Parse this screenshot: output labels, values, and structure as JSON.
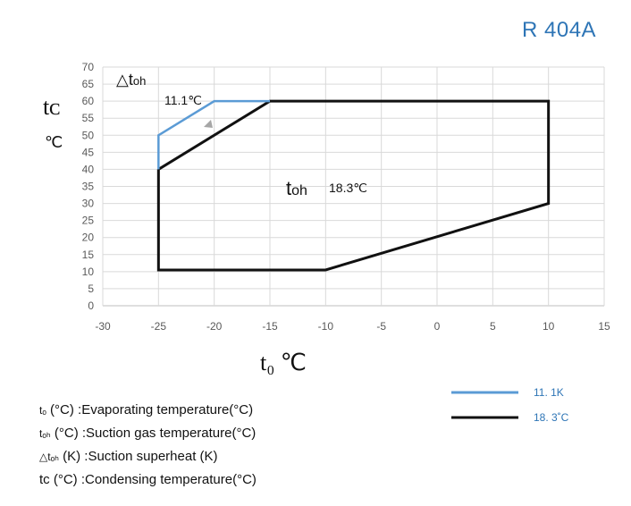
{
  "refrigerant": "R 404A",
  "chart_data": {
    "type": "line",
    "x_axis_label": "t₀ ℃",
    "y_axis_label_top": "tᴄ",
    "y_axis_label_unit": "℃",
    "xlim": [
      -30,
      15
    ],
    "ylim": [
      0,
      70
    ],
    "x_ticks": [
      -30,
      -25,
      -20,
      -15,
      -10,
      -5,
      0,
      5,
      10,
      15
    ],
    "y_ticks": [
      0,
      5,
      10,
      15,
      20,
      25,
      30,
      35,
      40,
      45,
      50,
      55,
      60,
      65,
      70
    ],
    "grid": true,
    "series": [
      {
        "name": "11. 1K",
        "color": "#5b9bd5",
        "points": [
          [
            -25,
            40
          ],
          [
            -25,
            50
          ],
          [
            -20,
            60
          ],
          [
            -15,
            60
          ]
        ]
      },
      {
        "name": "18. 3˚C",
        "color": "#111111",
        "points": [
          [
            -25,
            40
          ],
          [
            -15,
            60
          ],
          [
            10,
            60
          ],
          [
            10,
            30
          ],
          [
            -10,
            10.5
          ],
          [
            -25,
            10.5
          ],
          [
            -25,
            40
          ]
        ]
      }
    ],
    "annotations": {
      "delta_label": "△t",
      "delta_sub": "oh",
      "delta_value": "11.1℃",
      "toh_label": "t",
      "toh_sub": "oh",
      "toh_value": "18.3℃"
    }
  },
  "notes": [
    {
      "sym": "tₒ",
      "text": " (°C) :Evaporating temperature(°C)"
    },
    {
      "sym": "tₒₕ",
      "text": " (°C) :Suction gas temperature(°C)"
    },
    {
      "sym": "△tₒₕ",
      "text": " (K) :Suction superheat (K)"
    },
    {
      "sym": "tᴄ",
      "text": " (°C) :Condensing temperature(°C)"
    }
  ]
}
